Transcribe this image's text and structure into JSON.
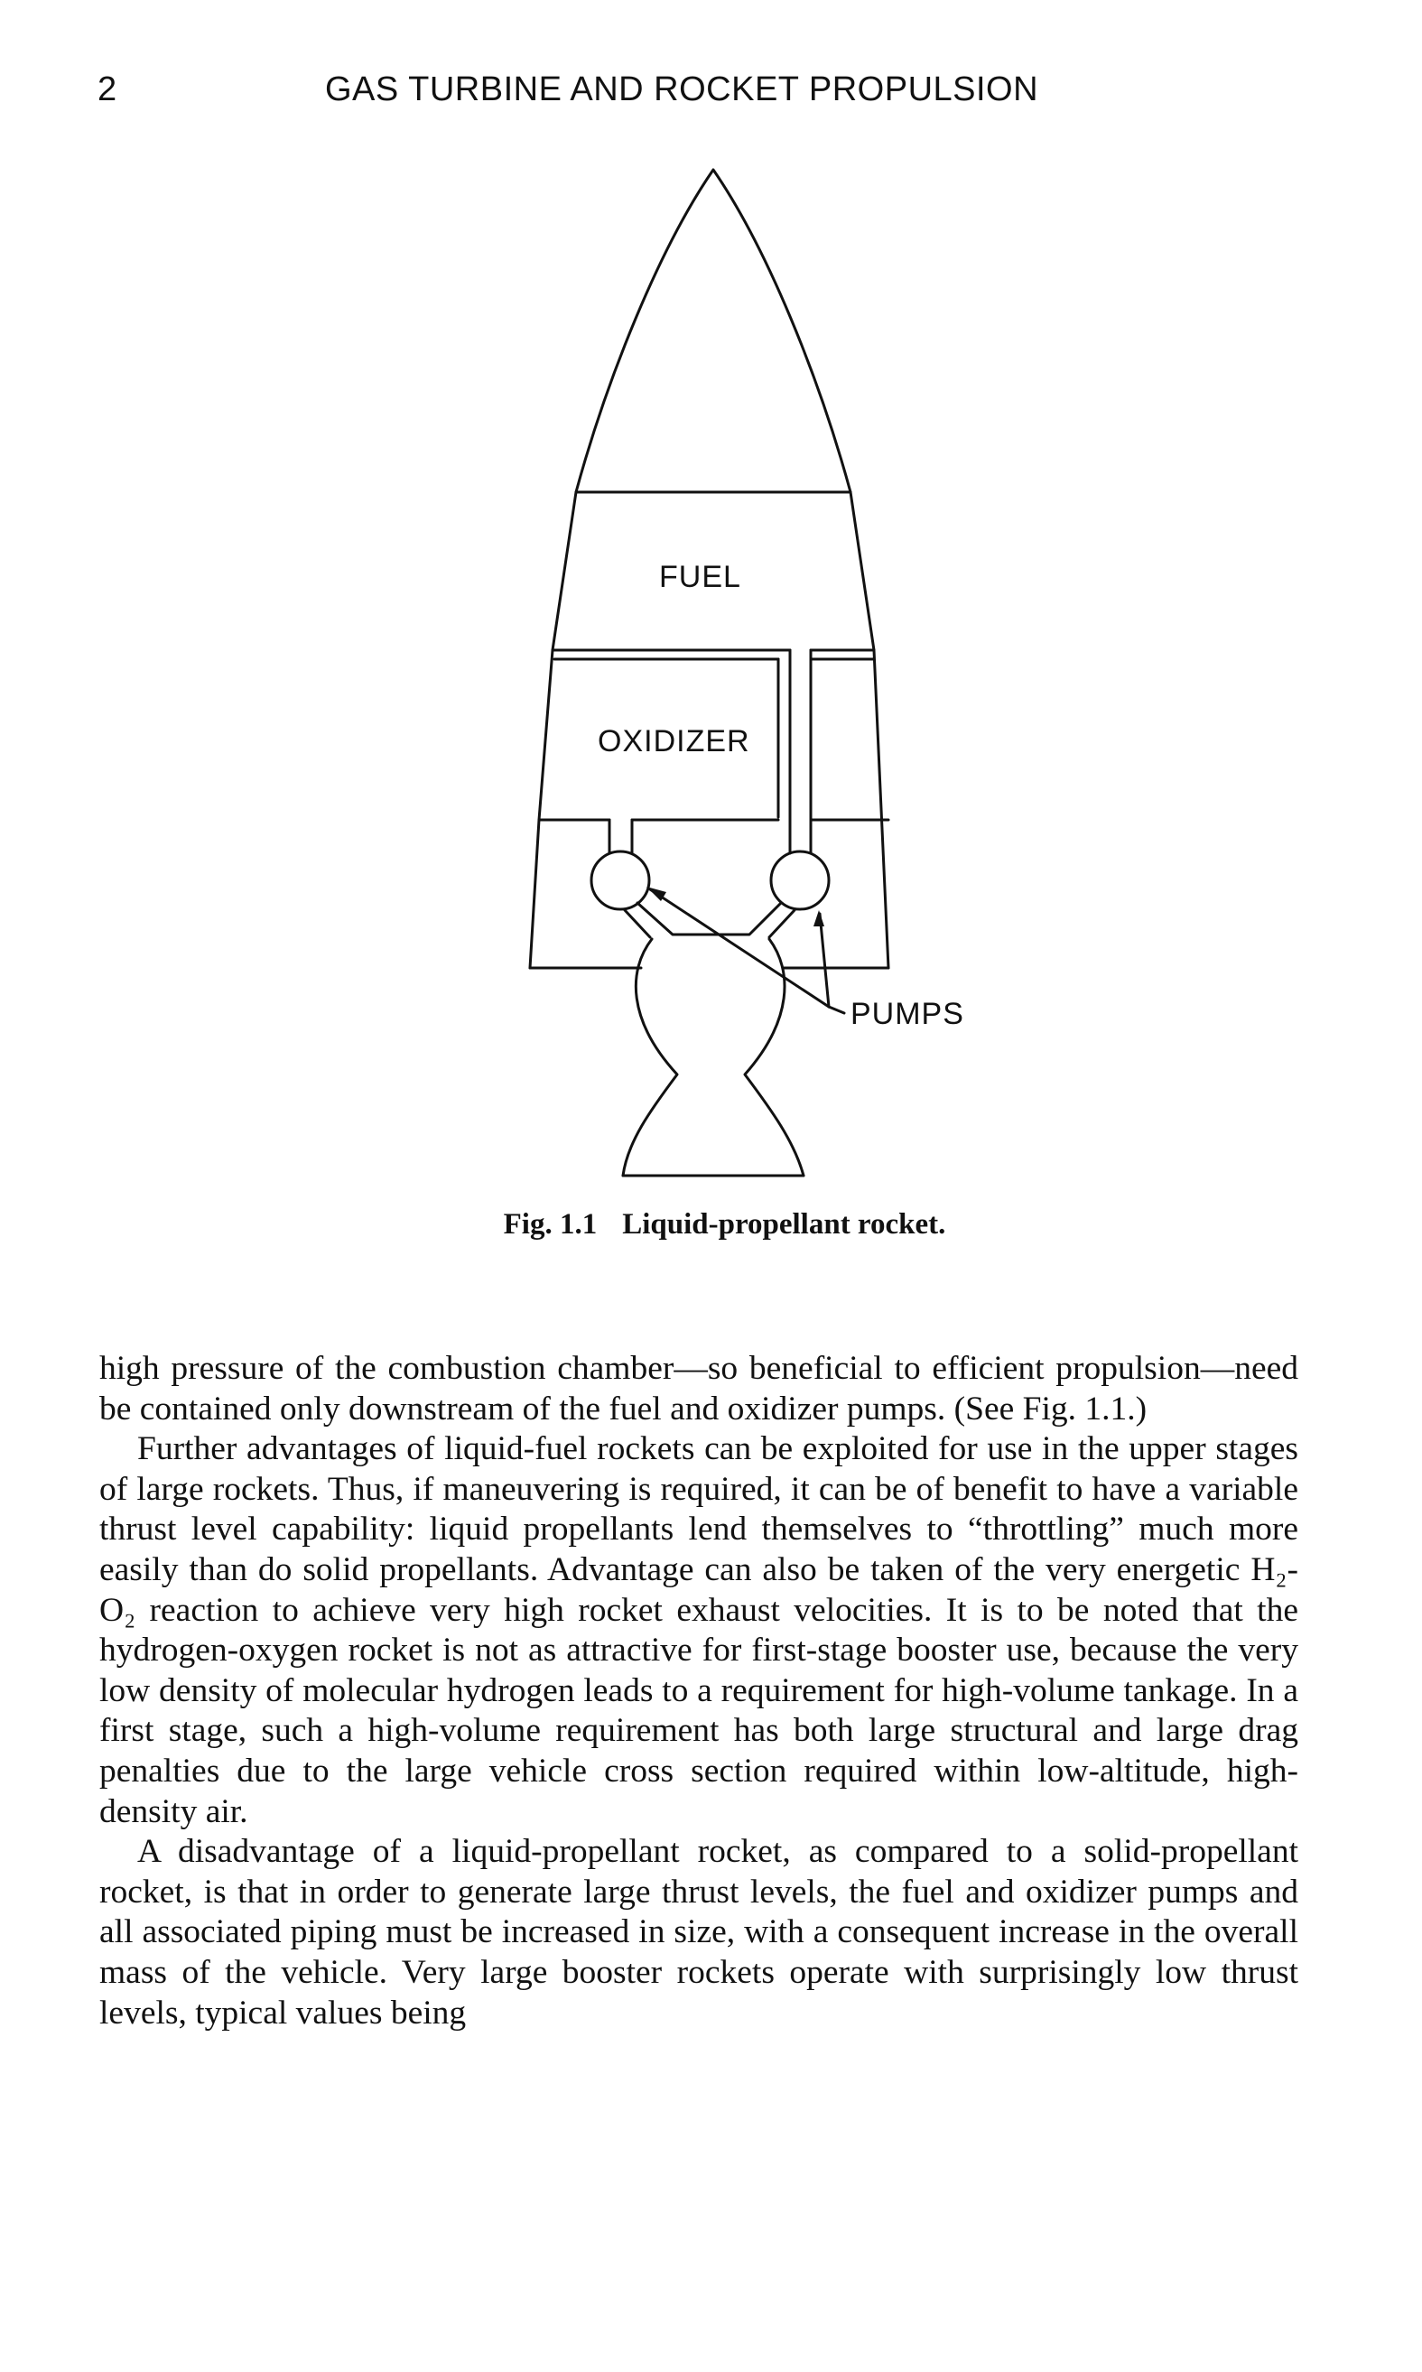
{
  "header": {
    "page_number": "2",
    "running_head": "GAS TURBINE AND ROCKET PROPULSION"
  },
  "figure": {
    "labels": {
      "fuel": "FUEL",
      "oxidizer": "OXIDIZER",
      "pumps": "PUMPS"
    },
    "caption_number": "Fig. 1.1",
    "caption_text": "Liquid-propellant rocket."
  },
  "body": {
    "paragraphs": [
      "high pressure of the combustion chamber—so beneficial to efficient propulsion—need be contained only downstream of the fuel and oxidizer pumps. (See Fig. 1.1.)",
      "Further advantages of liquid-fuel rockets can be exploited for use in the upper stages of large rockets. Thus, if maneuvering is required, it can be of benefit to have a variable thrust level capability: liquid propellants lend themselves to “throttling” much more easily than do solid propellants. Advantage can also be taken of the very energetic H₂-O₂ reaction to achieve very high rocket exhaust velocities. It is to be noted that the hydrogen-oxygen rocket is not as attractive for first-stage booster use, because the very low density of molecular hydrogen leads to a requirement for high-volume tankage. In a first stage, such a high-volume requirement has both large structural and large drag penalties due to the large vehicle cross section required within low-altitude, high-density air.",
      "A disadvantage of a liquid-propellant rocket, as compared to a solid-propellant rocket, is that in order to generate large thrust levels, the fuel and oxidizer pumps and all associated piping must be increased in size, with a consequent increase in the overall mass of the vehicle. Very large booster rockets operate with surprisingly low thrust levels, typical values being"
    ]
  }
}
